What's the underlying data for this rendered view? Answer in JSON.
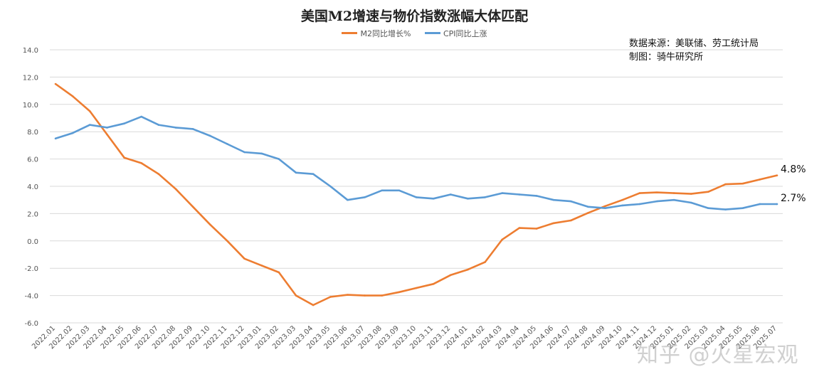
{
  "chart_data": {
    "type": "line",
    "title": "美国M2增速与物价指数涨幅大体匹配",
    "xlabel": "",
    "ylabel": "",
    "ylim": [
      -6,
      14
    ],
    "yticks": [
      "14.0",
      "12.0",
      "10.0",
      "8.0",
      "6.0",
      "4.0",
      "2.0",
      "0.0",
      "-2.0",
      "-4.0",
      "-6.0"
    ],
    "grid": true,
    "legend_position": "top-center",
    "categories": [
      "2022.01",
      "2022.02",
      "2022.03",
      "2022.04",
      "2022.05",
      "2022.06",
      "2022.07",
      "2022.08",
      "2022.09",
      "2022.10",
      "2022.11",
      "2022.12",
      "2023.01",
      "2023.02",
      "2023.03",
      "2023.04",
      "2023.05",
      "2023.06",
      "2023.07",
      "2023.08",
      "2023.09",
      "2023.10",
      "2023.11",
      "2023.12",
      "2024.01",
      "2024.02",
      "2024.03",
      "2024.04",
      "2024.05",
      "2024.06",
      "2024.07",
      "2024.08",
      "2024.09",
      "2024.10",
      "2024.11",
      "2024.12",
      "2025.01",
      "2025.02",
      "2025.03",
      "2025.04",
      "2025.05",
      "2025.06",
      "2025.07"
    ],
    "series": [
      {
        "name": "M2同比增长%",
        "color": "#ED7D31",
        "end_label": "4.8%",
        "values": [
          11.5,
          10.6,
          9.5,
          7.8,
          6.1,
          5.7,
          4.9,
          3.8,
          2.5,
          1.2,
          0.0,
          -1.3,
          -1.8,
          -2.3,
          -4.0,
          -4.7,
          -4.1,
          -3.95,
          -4.0,
          -4.0,
          -3.75,
          -3.45,
          -3.15,
          -2.5,
          -2.1,
          -1.55,
          0.1,
          0.95,
          0.9,
          1.3,
          1.5,
          2.05,
          2.55,
          3.0,
          3.5,
          3.55,
          3.5,
          3.45,
          3.6,
          4.15,
          4.2,
          4.5,
          4.8
        ]
      },
      {
        "name": "CPI同比上涨",
        "color": "#5B9BD5",
        "end_label": "2.7%",
        "values": [
          7.5,
          7.9,
          8.5,
          8.3,
          8.6,
          9.1,
          8.5,
          8.3,
          8.2,
          7.7,
          7.1,
          6.5,
          6.4,
          6.0,
          5.0,
          4.9,
          4.0,
          3.0,
          3.2,
          3.7,
          3.7,
          3.2,
          3.1,
          3.4,
          3.1,
          3.2,
          3.5,
          3.4,
          3.3,
          3.0,
          2.9,
          2.5,
          2.4,
          2.6,
          2.7,
          2.9,
          3.0,
          2.8,
          2.4,
          2.3,
          2.4,
          2.7,
          2.7
        ]
      }
    ]
  },
  "source_note": {
    "line1": "数据来源：美联储、劳工统计局",
    "line2": "制图：骑牛研究所"
  },
  "watermark": "知乎 @火星宏观"
}
